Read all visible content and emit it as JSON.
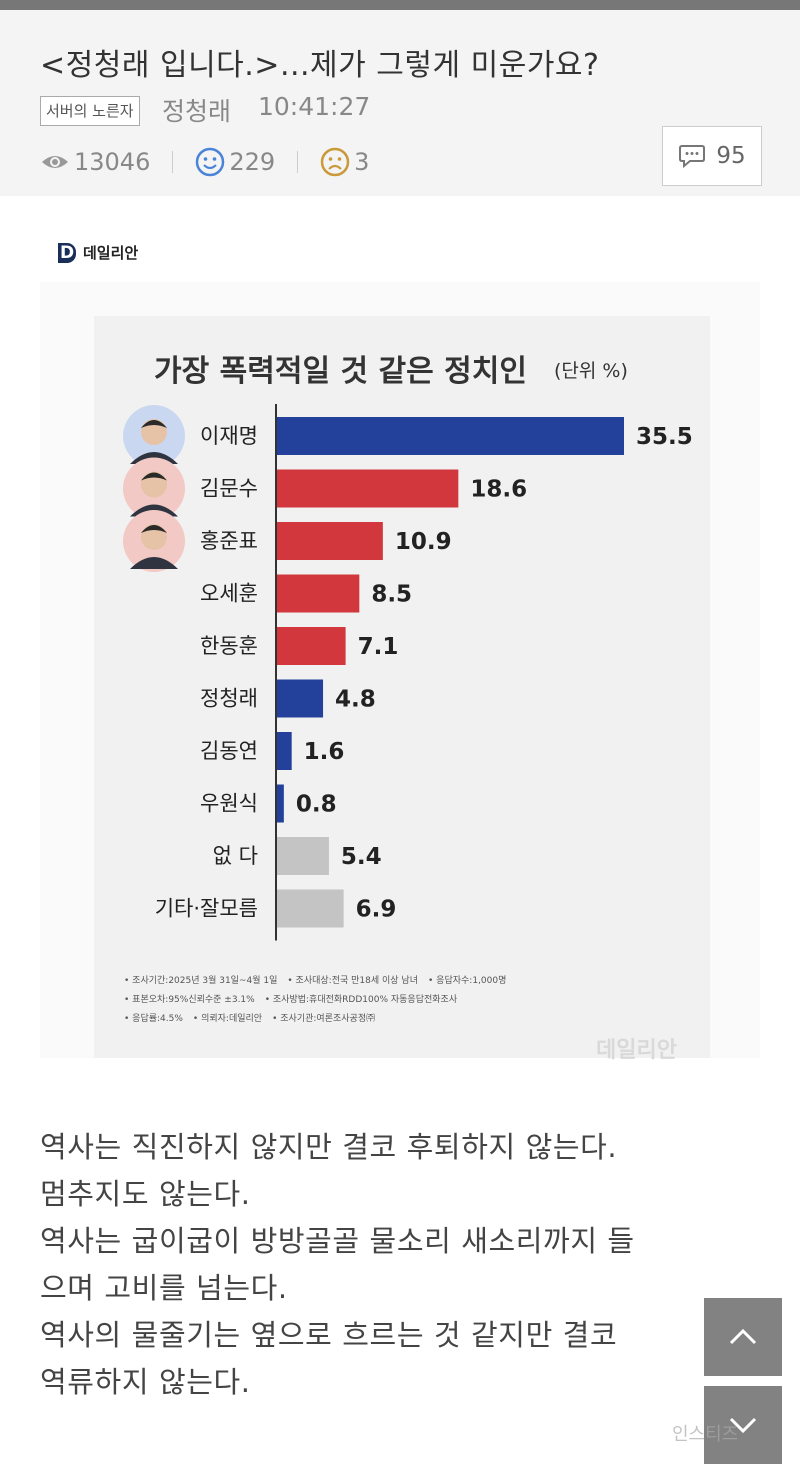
{
  "post": {
    "title": "<정청래 입니다.>...제가 그렇게 미운가요?",
    "board_badge": "서버의 노른자",
    "author": "정청래",
    "time": "10:41:27",
    "views": "13046",
    "likes": "229",
    "dislikes": "3",
    "comments": "95"
  },
  "figure": {
    "source_logo": "D",
    "source_name": "데일리안",
    "watermark": "데일리안",
    "footnotes": [
      [
        "• 조사기간:2025년 3월 31일~4월 1일",
        "• 조사대상:전국 만18세 이상 남녀",
        "• 응답자수:1,000명"
      ],
      [
        "• 표본오차:95%신뢰수준 ±3.1%",
        "• 조사방법:휴대전화RDD100% 자동응답전화조사"
      ],
      [
        "• 응답률:4.5%",
        "• 의뢰자:데일리안",
        "• 조사기관:여론조사공정㈜"
      ]
    ]
  },
  "chart_data": {
    "type": "bar",
    "orientation": "horizontal",
    "title": "가장 폭력적일 것 같은 정치인",
    "unit": "(단위 %)",
    "categories": [
      "이재명",
      "김문수",
      "홍준표",
      "오세훈",
      "한동훈",
      "정청래",
      "김동연",
      "우원식",
      "없 다",
      "기타·잘모름"
    ],
    "values": [
      35.5,
      18.6,
      10.9,
      8.5,
      7.1,
      4.8,
      1.6,
      0.8,
      5.4,
      6.9
    ],
    "value_labels": [
      "35.5",
      "18.6",
      "10.9",
      "8.5",
      "7.1",
      "4.8",
      "1.6",
      "0.8",
      "5.4",
      "6.9"
    ],
    "bar_colors": [
      "#23409a",
      "#d1373c",
      "#d1373c",
      "#d1373c",
      "#d1373c",
      "#23409a",
      "#23409a",
      "#23409a",
      "#c4c4c4",
      "#c4c4c4"
    ],
    "portraits": [
      "이재명",
      "김문수",
      "홍준표"
    ],
    "xlim": [
      0,
      35.5
    ],
    "grid": false,
    "legend": "none"
  },
  "article": {
    "lines": [
      "역사는 직진하지 않지만 결코 후퇴하지 않는다.",
      "멈추지도 않는다.",
      "역사는 굽이굽이 방방골골 물소리 새소리까지 들",
      "으며 고비를 넘는다.",
      "역사의 물줄기는 옆으로 흐르는 것 같지만 결코",
      "역류하지 않는다."
    ]
  },
  "ui": {
    "scroll_up_icon": "chevron-up-icon",
    "scroll_down_icon": "chevron-down-icon",
    "site_mark": "인스티즈"
  }
}
